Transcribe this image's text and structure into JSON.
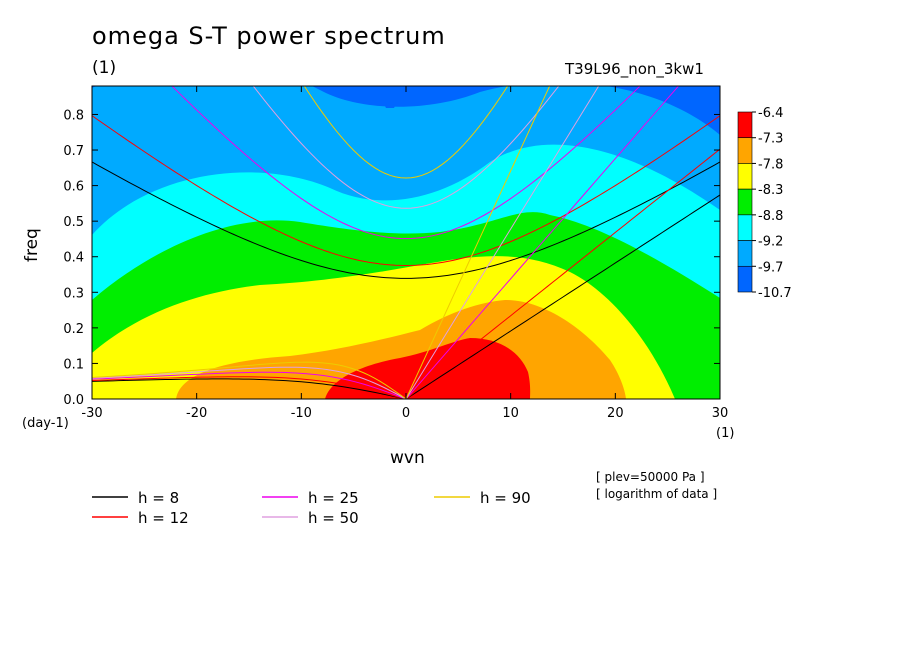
{
  "chart_data": {
    "type": "heatmap",
    "title": "omega S-T power spectrum",
    "title_units": "(1)",
    "run_label": "T39L96_non_3kw1",
    "xlabel": "wvn",
    "x_units": "(1)",
    "ylabel": "freq",
    "y_units": "(day-1)",
    "xlim": [
      -30,
      30
    ],
    "ylim": [
      0,
      0.88
    ],
    "x_ticks": [
      "-30",
      "-20",
      "-10",
      "0",
      "10",
      "20",
      "30"
    ],
    "y_ticks": [
      "0.0",
      "0.1",
      "0.2",
      "0.3",
      "0.4",
      "0.5",
      "0.6",
      "0.7",
      "0.8"
    ],
    "colorbar": {
      "labels": [
        "-6.4",
        "-7.3",
        "-7.8",
        "-8.3",
        "-8.8",
        "-9.2",
        "-9.7",
        "-10.7"
      ],
      "colors": [
        "#ff0000",
        "#ffa500",
        "#ffff00",
        "#00ee00",
        "#00ffff",
        "#00aaff",
        "#0066ff"
      ]
    },
    "contour_levels": [
      -6.4,
      -7.3,
      -7.8,
      -8.3,
      -8.8,
      -9.2,
      -9.7,
      -10.7
    ],
    "dispersion_curves": [
      {
        "name": "h =  8",
        "color": "#000000",
        "h": 8
      },
      {
        "name": "h = 12",
        "color": "#ff0000",
        "h": 12
      },
      {
        "name": "h = 25",
        "color": "#ee00ee",
        "h": 25
      },
      {
        "name": "h = 50",
        "color": "#e0a0e0",
        "h": 50
      },
      {
        "name": "h = 90",
        "color": "#eecc00",
        "h": 90
      }
    ],
    "notes": [
      "[ plev=50000 Pa ]",
      "[ logarithm of data ]"
    ]
  }
}
